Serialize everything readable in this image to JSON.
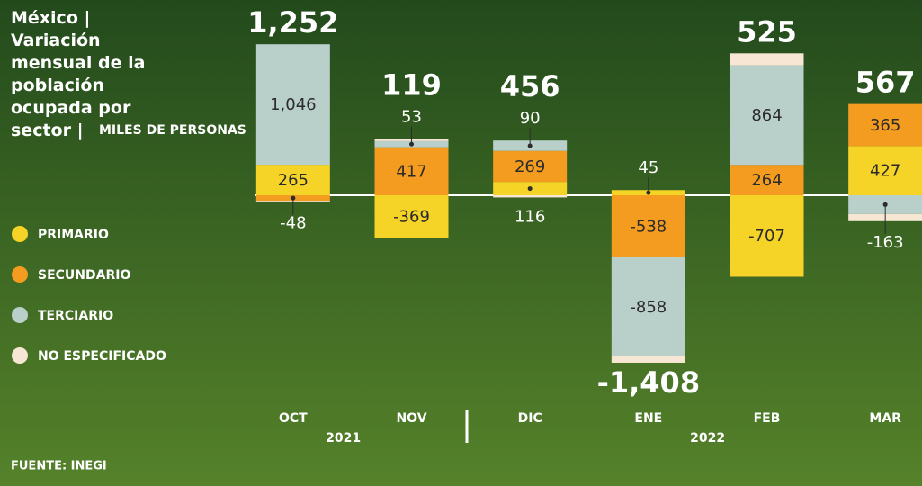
{
  "chart_data": {
    "type": "stacked_bar",
    "title": "México | Variación mensual de la población ocupada por sector |",
    "subtitle": "MILES DE PERSONAS",
    "source": "FUENTE: INEGI",
    "categories": [
      "OCT",
      "NOV",
      "DIC",
      "ENE",
      "FEB",
      "MAR"
    ],
    "year_labels": [
      "2021",
      "2022"
    ],
    "series": [
      {
        "name": "PRIMARIO",
        "color": "#f5d327",
        "values": [
          265,
          -369,
          116,
          45,
          -707,
          427
        ]
      },
      {
        "name": "SECUNDARIO",
        "color": "#f39c20",
        "values": [
          -48,
          417,
          269,
          -538,
          264,
          365
        ]
      },
      {
        "name": "TERCIARIO",
        "color": "#b9cfc9",
        "values": [
          1046,
          53,
          90,
          -858,
          864,
          -163
        ],
        "value_labels": [
          "1,046",
          "53",
          "90",
          "-858",
          "864",
          "-163"
        ]
      },
      {
        "name": "NO ESPECIFICADO",
        "color": "#f6e6d3",
        "values": [
          -11,
          18,
          -19,
          -57,
          104,
          -62
        ],
        "labels": false
      }
    ],
    "totals": [
      1252,
      119,
      456,
      -1408,
      525,
      567
    ],
    "total_labels": [
      "1,252",
      "119",
      "456",
      "-1,408",
      "525",
      "567"
    ],
    "ylim": [
      -1500,
      1500
    ]
  }
}
